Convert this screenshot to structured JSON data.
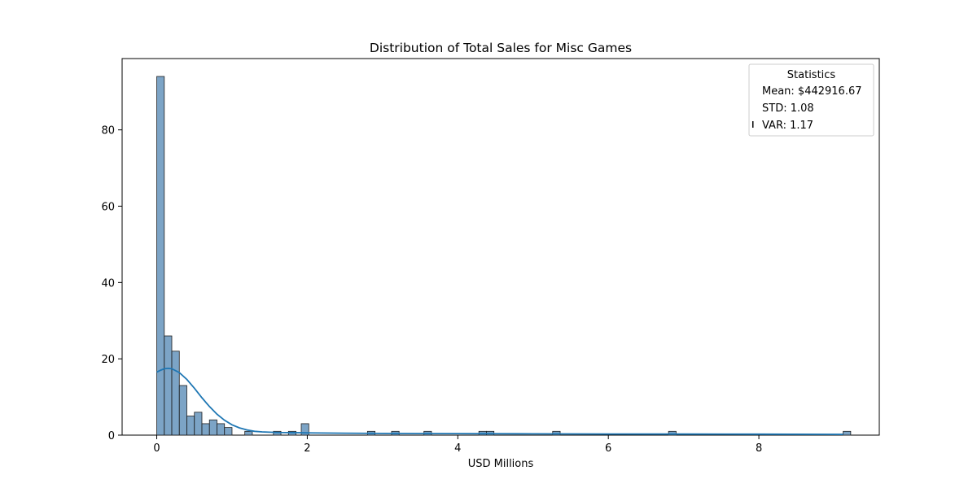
{
  "chart_data": {
    "type": "histogram",
    "title": "Distribution of Total Sales for Misc Games",
    "xlabel": "USD Millions",
    "ylabel": "",
    "xlim": [
      -0.46,
      9.6
    ],
    "ylim": [
      0,
      94
    ],
    "xticks": [
      0,
      2,
      4,
      6,
      8
    ],
    "yticks": [
      0,
      20,
      40,
      60,
      80
    ],
    "bin_width": 0.1,
    "bins": [
      {
        "x": 0.0,
        "count": 94
      },
      {
        "x": 0.1,
        "count": 26
      },
      {
        "x": 0.2,
        "count": 22
      },
      {
        "x": 0.3,
        "count": 13
      },
      {
        "x": 0.4,
        "count": 5
      },
      {
        "x": 0.5,
        "count": 6
      },
      {
        "x": 0.6,
        "count": 3
      },
      {
        "x": 0.7,
        "count": 4
      },
      {
        "x": 0.8,
        "count": 3
      },
      {
        "x": 0.9,
        "count": 2
      },
      {
        "x": 1.17,
        "count": 1
      },
      {
        "x": 1.55,
        "count": 1
      },
      {
        "x": 1.75,
        "count": 1
      },
      {
        "x": 1.92,
        "count": 3
      },
      {
        "x": 2.8,
        "count": 1
      },
      {
        "x": 3.12,
        "count": 1
      },
      {
        "x": 3.55,
        "count": 1
      },
      {
        "x": 4.28,
        "count": 1
      },
      {
        "x": 4.38,
        "count": 1
      },
      {
        "x": 5.26,
        "count": 1
      },
      {
        "x": 6.8,
        "count": 1
      },
      {
        "x": 9.12,
        "count": 1
      }
    ],
    "kde": {
      "x": [
        0.0,
        0.05,
        0.1,
        0.15,
        0.2,
        0.3,
        0.4,
        0.5,
        0.6,
        0.7,
        0.8,
        0.9,
        1.0,
        1.1,
        1.2,
        1.3,
        1.4,
        1.6,
        1.8,
        2.0,
        2.5,
        3.0,
        4.0,
        5.0,
        6.0,
        7.0,
        8.0,
        9.12
      ],
      "y": [
        16.5,
        17.0,
        17.4,
        17.5,
        17.4,
        16.4,
        14.6,
        12.3,
        9.8,
        7.5,
        5.5,
        3.9,
        2.7,
        1.9,
        1.35,
        1.0,
        0.85,
        0.7,
        0.65,
        0.6,
        0.5,
        0.45,
        0.4,
        0.35,
        0.3,
        0.28,
        0.25,
        0.2
      ]
    },
    "bar_color": "#5b8db8",
    "bar_edge": "#1f1f1f",
    "line_color": "#1f77b4",
    "grid": false,
    "legend": {
      "placement": "top-right",
      "title": "Statistics",
      "entries": [
        "Mean: $442916.67",
        "STD: 1.08",
        "VAR: 1.17"
      ]
    }
  }
}
